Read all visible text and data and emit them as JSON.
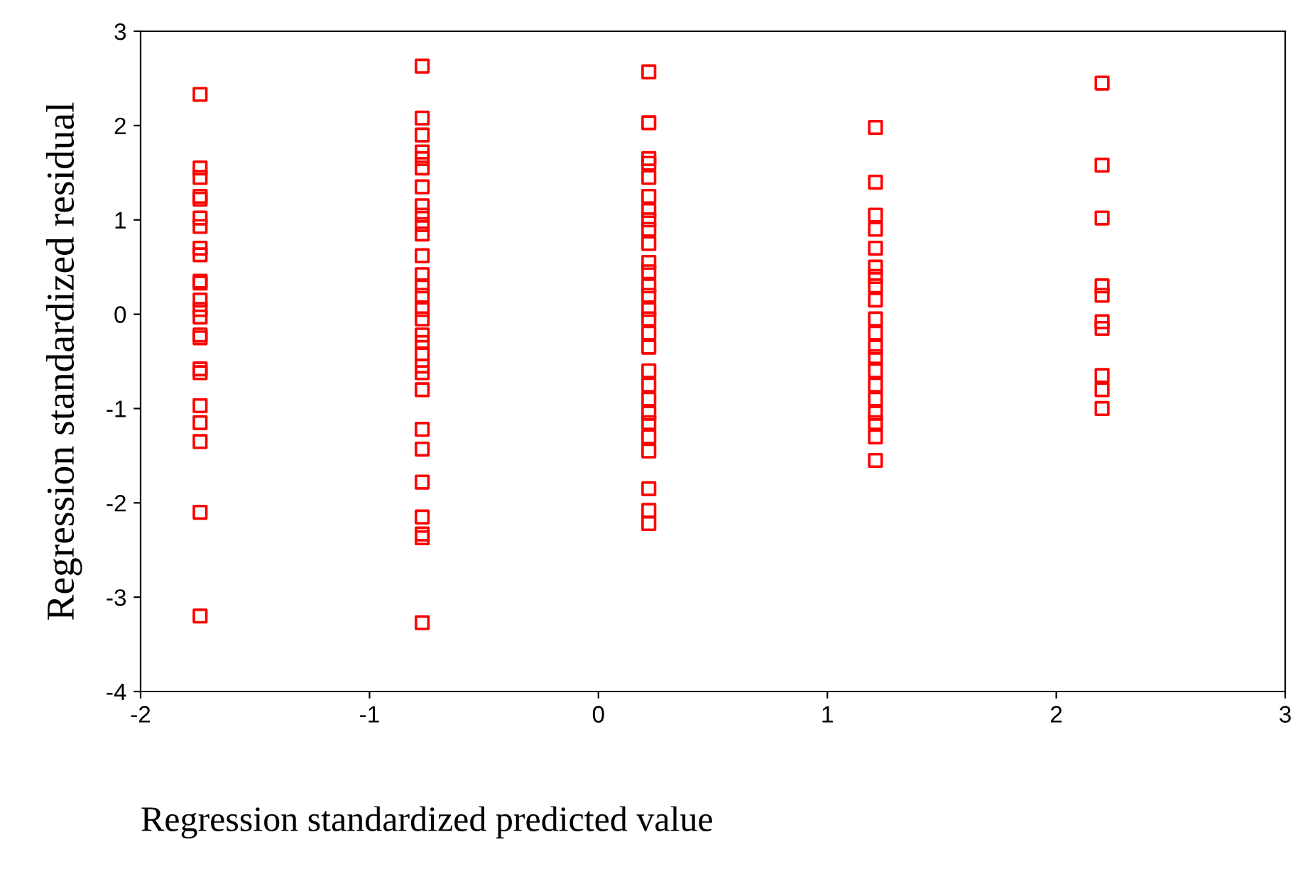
{
  "chart_data": {
    "type": "scatter",
    "xlabel": "Regression standardized predicted value",
    "ylabel": "Regression standardized residual",
    "marker": "square",
    "grid": false,
    "legend": false,
    "xlim": [
      -2,
      3
    ],
    "ylim": [
      -4,
      3
    ],
    "xticks": [
      -2,
      -1,
      0,
      1,
      2,
      3
    ],
    "yticks": [
      -4,
      -3,
      -2,
      -1,
      0,
      1,
      2,
      3
    ],
    "series": [
      {
        "color": "#ff0000",
        "x": [
          -1.74,
          -1.74,
          -1.74,
          -1.74,
          -1.74,
          -1.74,
          -1.74,
          -1.74,
          -1.74,
          -1.74,
          -1.74,
          -1.74,
          -1.74,
          -1.74,
          -1.74,
          -1.74,
          -1.74,
          -1.74,
          -1.74,
          -1.74,
          -1.74,
          -1.74,
          -1.74
        ],
        "values": [
          2.33,
          1.55,
          1.45,
          1.25,
          1.22,
          1.02,
          0.93,
          0.7,
          0.63,
          0.35,
          0.33,
          0.15,
          0.05,
          -0.03,
          -0.22,
          -0.25,
          -0.58,
          -0.62,
          -0.97,
          -1.15,
          -1.35,
          -2.1,
          -3.2
        ]
      },
      {
        "color": "#ff0000",
        "x": [
          -0.77,
          -0.77,
          -0.77,
          -0.77,
          -0.77,
          -0.77,
          -0.77,
          -0.77,
          -0.77,
          -0.77,
          -0.77,
          -0.77,
          -0.77,
          -0.77,
          -0.77,
          -0.77,
          -0.77,
          -0.77,
          -0.77,
          -0.77,
          -0.77,
          -0.77,
          -0.77,
          -0.77,
          -0.77,
          -0.77,
          -0.77,
          -0.77,
          -0.77,
          -0.77
        ],
        "values": [
          2.63,
          2.08,
          1.9,
          1.72,
          1.65,
          1.55,
          1.35,
          1.15,
          1.05,
          0.95,
          0.85,
          0.62,
          0.42,
          0.3,
          0.2,
          0.05,
          -0.05,
          -0.22,
          -0.3,
          -0.42,
          -0.55,
          -0.62,
          -0.8,
          -1.22,
          -1.43,
          -1.78,
          -2.15,
          -2.33,
          -2.37,
          -3.27
        ]
      },
      {
        "color": "#ff0000",
        "x": [
          0.22,
          0.22,
          0.22,
          0.22,
          0.22,
          0.22,
          0.22,
          0.22,
          0.22,
          0.22,
          0.22,
          0.22,
          0.22,
          0.22,
          0.22,
          0.22,
          0.22,
          0.22,
          0.22,
          0.22,
          0.22,
          0.22,
          0.22,
          0.22,
          0.22,
          0.22,
          0.22,
          0.22
        ],
        "values": [
          2.57,
          2.03,
          1.65,
          1.6,
          1.45,
          1.25,
          1.1,
          1.0,
          0.9,
          0.75,
          0.55,
          0.45,
          0.3,
          0.2,
          0.05,
          -0.05,
          -0.2,
          -0.35,
          -0.6,
          -0.75,
          -0.9,
          -1.05,
          -1.15,
          -1.3,
          -1.45,
          -1.85,
          -2.08,
          -2.22
        ]
      },
      {
        "color": "#ff0000",
        "x": [
          1.21,
          1.21,
          1.21,
          1.21,
          1.21,
          1.21,
          1.21,
          1.21,
          1.21,
          1.21,
          1.21,
          1.21,
          1.21,
          1.21,
          1.21,
          1.21,
          1.21,
          1.21,
          1.21,
          1.21
        ],
        "values": [
          1.98,
          1.4,
          1.05,
          0.9,
          0.7,
          0.5,
          0.4,
          0.3,
          0.15,
          -0.05,
          -0.2,
          -0.35,
          -0.45,
          -0.6,
          -0.75,
          -0.9,
          -1.05,
          -1.15,
          -1.3,
          -1.55
        ]
      },
      {
        "color": "#ff0000",
        "x": [
          2.2,
          2.2,
          2.2,
          2.2,
          2.2,
          2.2,
          2.2,
          2.2,
          2.2,
          2.2
        ],
        "values": [
          2.45,
          1.58,
          1.02,
          0.3,
          0.2,
          -0.08,
          -0.15,
          -0.65,
          -0.8,
          -1.0
        ]
      }
    ]
  }
}
